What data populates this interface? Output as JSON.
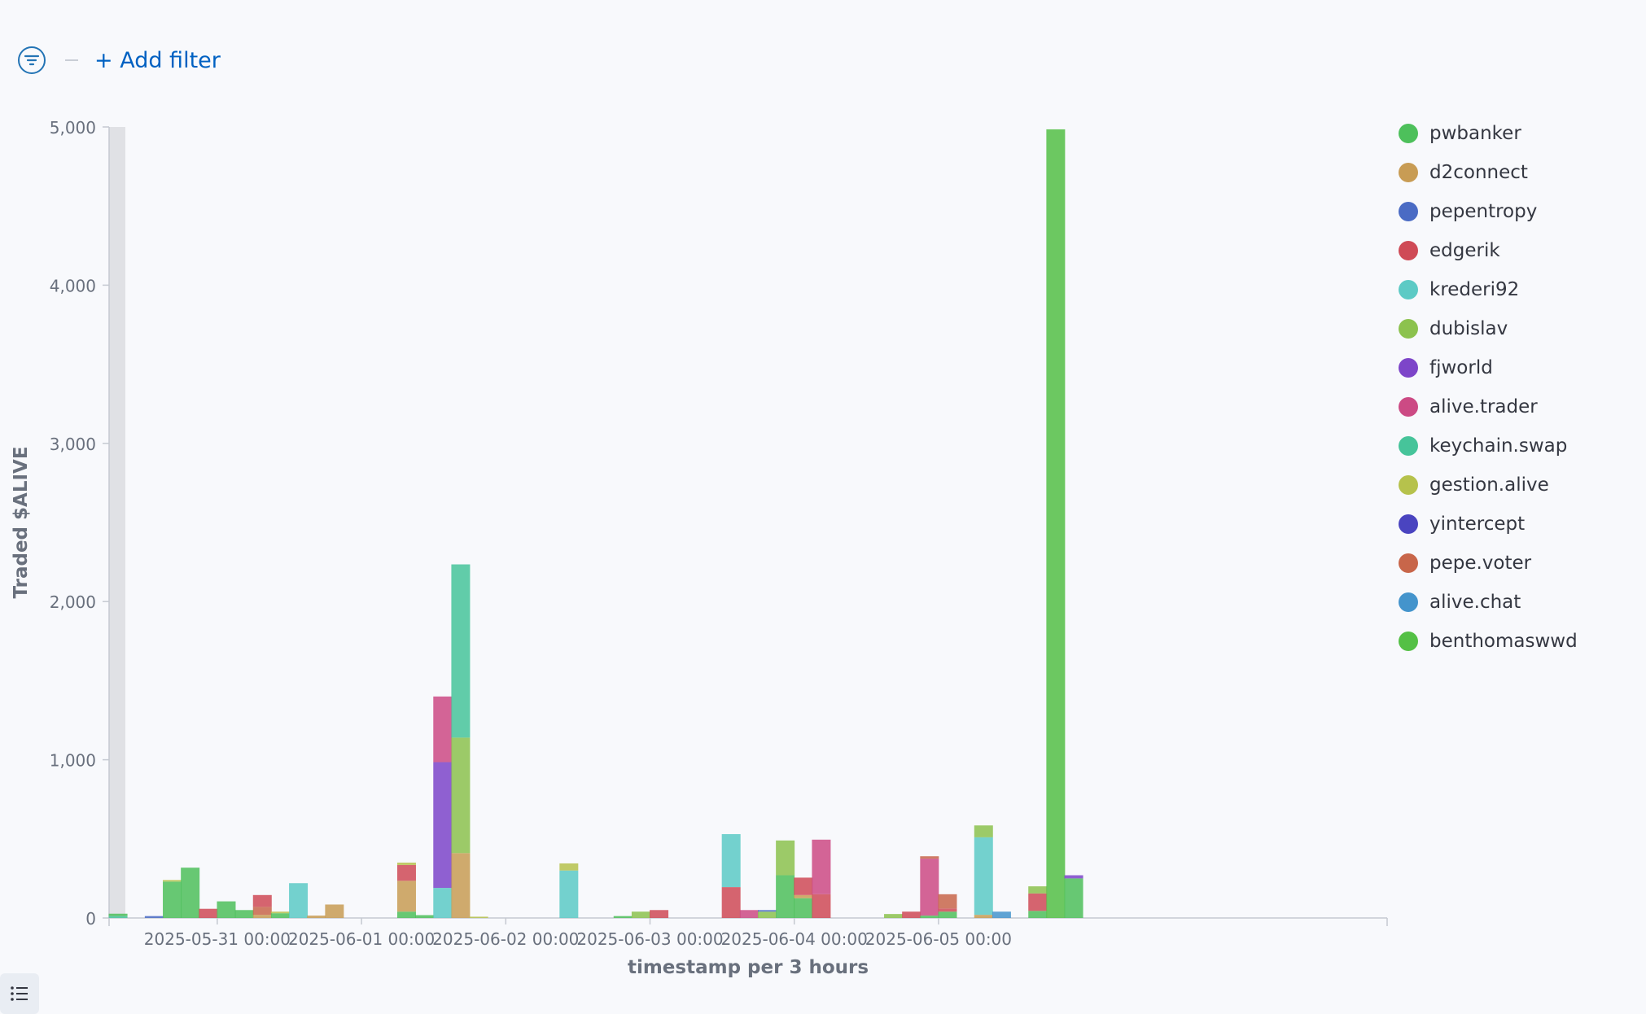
{
  "filter_bar": {
    "add_filter_label": "+ Add filter",
    "filter_icon": "filter-lines-icon"
  },
  "chart_data": {
    "type": "bar",
    "stacked": true,
    "xlabel": "timestamp per 3 hours",
    "ylabel": "Traded $ALIVE",
    "ylim": [
      0,
      5000
    ],
    "yticks": [
      0,
      1000,
      2000,
      3000,
      4000,
      5000
    ],
    "ytick_labels": [
      "0",
      "1,000",
      "2,000",
      "3,000",
      "4,000",
      "5,000"
    ],
    "xtick_labels": [
      "2025-05-31 00:00",
      "2025-06-01 00:00",
      "2025-06-02 00:00",
      "2025-06-03 00:00",
      "2025-06-04 00:00",
      "2025-06-05 00:00"
    ],
    "xtick_slots": [
      6,
      14,
      22,
      30,
      38,
      46
    ],
    "legend_position": "right",
    "series_names": [
      "pwbanker",
      "d2connect",
      "pepentropy",
      "edgerik",
      "krederi92",
      "dubislav",
      "fjworld",
      "alive.trader",
      "keychain.swap",
      "gestion.alive",
      "yintercept",
      "pepe.voter",
      "alive.chat",
      "benthomaswwd"
    ],
    "series_colors": [
      "#4dc05b",
      "#c89c54",
      "#4a6bc4",
      "#cf4a56",
      "#5ccac5",
      "#8cc24e",
      "#7d45c9",
      "#cc4a84",
      "#46c49a",
      "#b6c24c",
      "#4a44c0",
      "#c8664a",
      "#4494cc",
      "#54c045"
    ],
    "bars": [
      {
        "slot": 0,
        "segments": [
          [
            "keychain.swap",
            12
          ],
          [
            "pwbanker",
            15
          ]
        ]
      },
      {
        "slot": 2,
        "segments": [
          [
            "pepentropy",
            12
          ]
        ]
      },
      {
        "slot": 3,
        "segments": [
          [
            "pwbanker",
            230
          ],
          [
            "gestion.alive",
            10
          ]
        ]
      },
      {
        "slot": 4,
        "segments": [
          [
            "pwbanker",
            318
          ]
        ]
      },
      {
        "slot": 5,
        "segments": [
          [
            "edgerik",
            58
          ]
        ]
      },
      {
        "slot": 6,
        "segments": [
          [
            "pwbanker",
            105
          ]
        ]
      },
      {
        "slot": 7,
        "segments": [
          [
            "pwbanker",
            50
          ]
        ]
      },
      {
        "slot": 8,
        "segments": [
          [
            "d2connect",
            20
          ],
          [
            "pepe.voter",
            50
          ],
          [
            "edgerik",
            75
          ]
        ]
      },
      {
        "slot": 9,
        "segments": [
          [
            "pwbanker",
            30
          ],
          [
            "gestion.alive",
            10
          ]
        ]
      },
      {
        "slot": 10,
        "segments": [
          [
            "krederi92",
            220
          ]
        ]
      },
      {
        "slot": 11,
        "segments": [
          [
            "d2connect",
            15
          ]
        ]
      },
      {
        "slot": 12,
        "segments": [
          [
            "d2connect",
            85
          ]
        ]
      },
      {
        "slot": 16,
        "segments": [
          [
            "pwbanker",
            40
          ],
          [
            "d2connect",
            195
          ],
          [
            "edgerik",
            100
          ],
          [
            "gestion.alive",
            15
          ]
        ]
      },
      {
        "slot": 17,
        "segments": [
          [
            "pwbanker",
            18
          ]
        ]
      },
      {
        "slot": 18,
        "segments": [
          [
            "krederi92",
            190
          ],
          [
            "fjworld",
            795
          ],
          [
            "alive.trader",
            415
          ]
        ]
      },
      {
        "slot": 19,
        "segments": [
          [
            "d2connect",
            410
          ],
          [
            "dubislav",
            730
          ],
          [
            "keychain.swap",
            1095
          ]
        ]
      },
      {
        "slot": 20,
        "segments": [
          [
            "gestion.alive",
            8
          ]
        ]
      },
      {
        "slot": 25,
        "segments": [
          [
            "krederi92",
            300
          ],
          [
            "gestion.alive",
            45
          ]
        ]
      },
      {
        "slot": 28,
        "segments": [
          [
            "pwbanker",
            12
          ]
        ]
      },
      {
        "slot": 29,
        "segments": [
          [
            "dubislav",
            40
          ]
        ]
      },
      {
        "slot": 30,
        "segments": [
          [
            "edgerik",
            50
          ]
        ]
      },
      {
        "slot": 34,
        "segments": [
          [
            "edgerik",
            195
          ],
          [
            "krederi92",
            335
          ]
        ]
      },
      {
        "slot": 35,
        "segments": [
          [
            "alive.trader",
            50
          ]
        ]
      },
      {
        "slot": 36,
        "segments": [
          [
            "dubislav",
            40
          ],
          [
            "pepentropy",
            10
          ]
        ]
      },
      {
        "slot": 37,
        "segments": [
          [
            "pwbanker",
            270
          ],
          [
            "dubislav",
            220
          ]
        ]
      },
      {
        "slot": 38,
        "segments": [
          [
            "pwbanker",
            125
          ],
          [
            "d2connect",
            20
          ],
          [
            "edgerik",
            110
          ]
        ]
      },
      {
        "slot": 39,
        "segments": [
          [
            "edgerik",
            150
          ],
          [
            "alive.trader",
            345
          ]
        ]
      },
      {
        "slot": 43,
        "segments": [
          [
            "dubislav",
            25
          ]
        ]
      },
      {
        "slot": 44,
        "segments": [
          [
            "edgerik",
            40
          ]
        ]
      },
      {
        "slot": 45,
        "segments": [
          [
            "pwbanker",
            15
          ],
          [
            "alive.trader",
            360
          ],
          [
            "pepe.voter",
            15
          ]
        ]
      },
      {
        "slot": 46,
        "segments": [
          [
            "pwbanker",
            40
          ],
          [
            "edgerik",
            20
          ],
          [
            "pepe.voter",
            90
          ]
        ]
      },
      {
        "slot": 48,
        "segments": [
          [
            "d2connect",
            20
          ],
          [
            "krederi92",
            490
          ],
          [
            "dubislav",
            75
          ]
        ]
      },
      {
        "slot": 49,
        "segments": [
          [
            "alive.chat",
            40
          ]
        ]
      },
      {
        "slot": 51,
        "segments": [
          [
            "pwbanker",
            45
          ],
          [
            "edgerik",
            110
          ],
          [
            "dubislav",
            45
          ]
        ]
      },
      {
        "slot": 52,
        "segments": [
          [
            "benthomaswwd",
            4985
          ]
        ]
      },
      {
        "slot": 53,
        "segments": [
          [
            "pwbanker",
            250
          ],
          [
            "fjworld",
            20
          ]
        ]
      }
    ]
  }
}
